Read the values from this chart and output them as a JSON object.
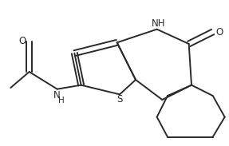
{
  "bg_color": "#ffffff",
  "line_color": "#2a2a2a",
  "line_width": 1.4,
  "figure_size": [
    2.87,
    1.83
  ],
  "dpi": 100,
  "xlim": [
    0,
    287
  ],
  "ylim": [
    0,
    183
  ]
}
